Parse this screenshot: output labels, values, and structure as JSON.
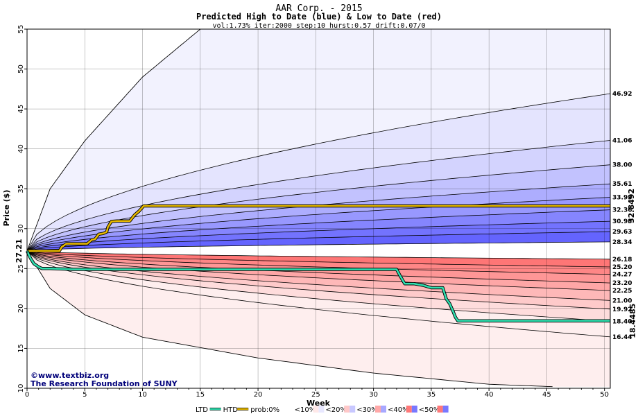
{
  "chart_data": {
    "type": "line",
    "title": "AAR Corp. - 2015",
    "subtitle": "Predicted High to Date (blue) &  Low to Date (red)",
    "params": "vol:1.73% iter:2000 step:10 hurst:0.57 drift:0.07/0",
    "xlabel": "Week",
    "ylabel": "Price ($)",
    "xlim": [
      0,
      50.5
    ],
    "ylim": [
      10,
      55
    ],
    "xticks": [
      0,
      5,
      10,
      15,
      20,
      25,
      30,
      35,
      40,
      45,
      50
    ],
    "yticks": [
      10,
      15,
      20,
      25,
      30,
      35,
      40,
      45,
      50,
      55
    ],
    "start_price": 27.21,
    "start_label": "27.21",
    "grid": true,
    "upper_band_endpoints": [
      {
        "label": "46.92",
        "value": 46.92
      },
      {
        "label": "41.06",
        "value": 41.06
      },
      {
        "label": "38.00",
        "value": 38.0
      },
      {
        "label": "35.61",
        "value": 35.61
      },
      {
        "label": "33.93",
        "value": 33.93
      },
      {
        "label": "32.36",
        "value": 32.36
      },
      {
        "label": "30.93",
        "value": 30.93
      },
      {
        "label": "29.63",
        "value": 29.63
      },
      {
        "label": "28.34",
        "value": 28.34
      }
    ],
    "lower_band_endpoints": [
      {
        "label": "26.18",
        "value": 26.18
      },
      {
        "label": "25.20",
        "value": 25.2
      },
      {
        "label": "24.27",
        "value": 24.27
      },
      {
        "label": "23.20",
        "value": 23.2
      },
      {
        "label": "22.25",
        "value": 22.25
      },
      {
        "label": "21.00",
        "value": 21.0
      },
      {
        "label": "19.92",
        "value": 19.92
      },
      {
        "label": "18.40",
        "value": 18.4
      },
      {
        "label": "16.44",
        "value": 16.44
      }
    ],
    "htd_final_label": "32.8492",
    "ltd_final_label": "18.4485",
    "series": [
      {
        "name": "HTD",
        "color": "#e6b800",
        "x": [
          0,
          1.5,
          2.8,
          3.0,
          3.4,
          5.2,
          5.6,
          5.9,
          6.2,
          6.6,
          6.9,
          7.0,
          7.3,
          7.8,
          8.9,
          9.3,
          9.7,
          10.1,
          10.5,
          12,
          15,
          20,
          30,
          40,
          50.5
        ],
        "y": [
          27.21,
          27.21,
          27.21,
          27.7,
          28.1,
          28.1,
          28.6,
          28.7,
          29.3,
          29.4,
          29.6,
          30.2,
          30.9,
          30.95,
          30.95,
          31.7,
          32.2,
          32.85,
          32.85,
          32.85,
          32.85,
          32.85,
          32.85,
          32.85,
          32.85
        ]
      },
      {
        "name": "LTD",
        "color": "#2fe0b0",
        "x": [
          0,
          0.3,
          0.6,
          1.0,
          1.3,
          2.0,
          4,
          10,
          20,
          30,
          32.0,
          32.3,
          32.7,
          33.5,
          34.3,
          35.0,
          36.0,
          36.3,
          36.6,
          36.9,
          37.1,
          37.3,
          40,
          45,
          50.5
        ],
        "y": [
          27.21,
          26.3,
          25.6,
          25.2,
          25.0,
          25.0,
          24.9,
          24.9,
          24.9,
          24.9,
          24.9,
          24.1,
          23.1,
          23.1,
          22.9,
          22.6,
          22.6,
          21.2,
          20.6,
          19.6,
          18.9,
          18.45,
          18.45,
          18.45,
          18.45
        ]
      }
    ],
    "outer_upper_curve": {
      "x": [
        0,
        2,
        5,
        10,
        15
      ],
      "y": [
        27.21,
        35,
        41,
        49,
        55
      ]
    },
    "outer_lower_curve": {
      "x": [
        0,
        2,
        5,
        10,
        20,
        30,
        40,
        45.5
      ],
      "y": [
        27.21,
        22.5,
        19.2,
        16.4,
        13.8,
        11.9,
        10.5,
        10.2
      ]
    },
    "legend": {
      "placement": "bottom-center",
      "ltd_label": "LTD",
      "htd_label": "HTD",
      "prob_label": "prob:0%",
      "bins": [
        "<10%",
        "<20%",
        "<30%",
        "<40%",
        "<50%"
      ],
      "bin_colors_blue": [
        "#ffffff",
        "#e8e8ff",
        "#c8c8ff",
        "#a8a8ff",
        "#7878ff"
      ],
      "bin_colors_red": [
        "#ffffff",
        "#ffe8e8",
        "#ffc8c8",
        "#ffa8a8",
        "#ff7878"
      ]
    },
    "credit_line1": "©www.textbiz.org",
    "credit_line2": "The Research Foundation of SUNY",
    "colors": {
      "upper_fill": [
        "#f2f2fe",
        "#e4e4fe",
        "#d3d3fe",
        "#c2c2fe",
        "#adadfe",
        "#9898fe",
        "#8585fe",
        "#7373fe",
        "#6464fe"
      ],
      "lower_fill": [
        "#ffffff",
        "#feeeee",
        "#fedcdc",
        "#fecaca",
        "#feb8b8",
        "#fea6a6",
        "#fe9696",
        "#fe8686",
        "#fe7676"
      ],
      "htd_label": "#b89200",
      "ltd_label": "#00a070",
      "start_label": "#006400"
    }
  }
}
